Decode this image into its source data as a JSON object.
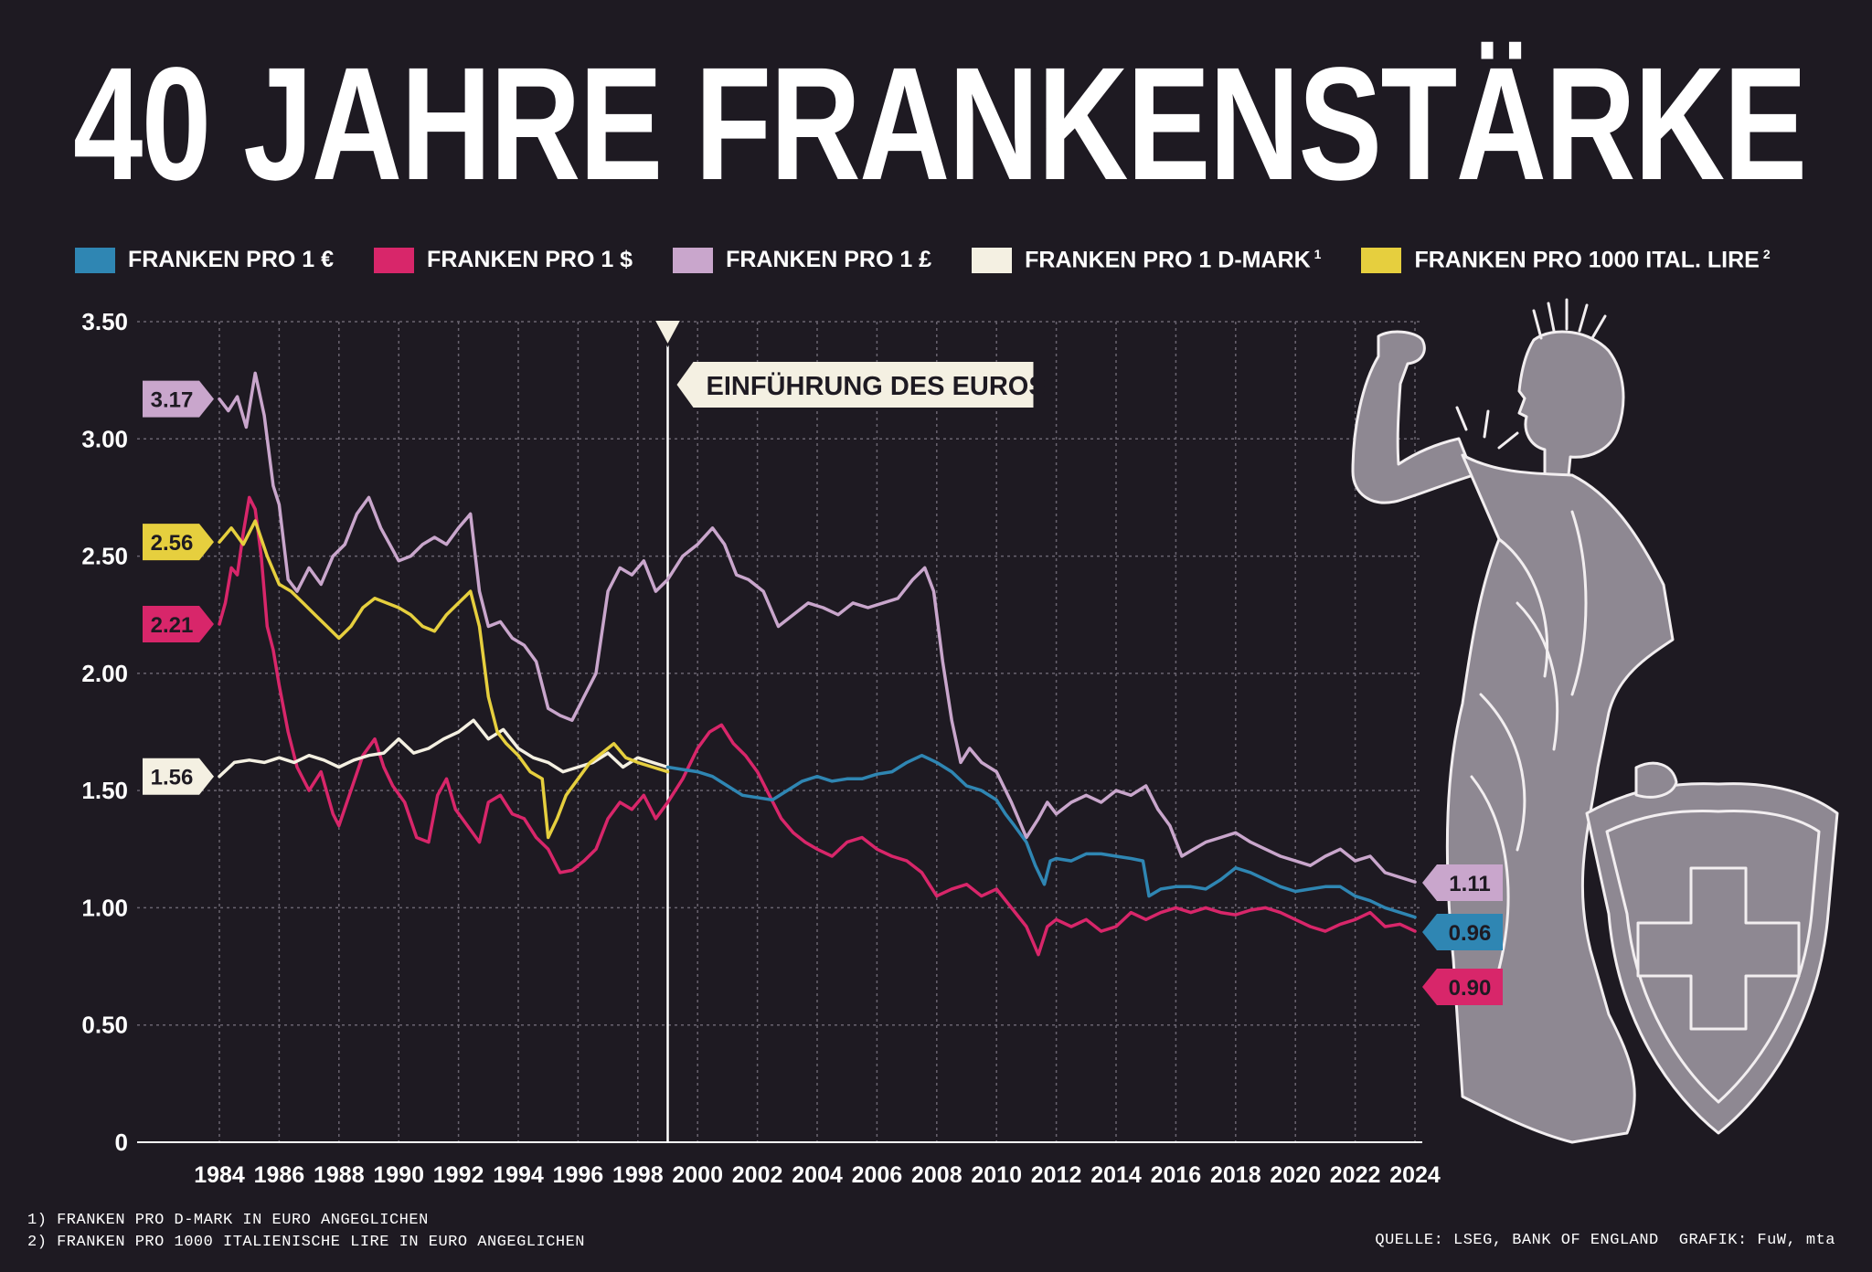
{
  "title": "40 JAHRE FRANKENSTÄRKE",
  "legend": [
    {
      "label": "FRANKEN PRO 1 €",
      "sup": "",
      "color": "#2f86b3"
    },
    {
      "label": "FRANKEN PRO 1 $",
      "sup": "",
      "color": "#d8266a"
    },
    {
      "label": "FRANKEN PRO 1 £",
      "sup": "",
      "color": "#c9a6cc"
    },
    {
      "label": "FRANKEN PRO 1 D-MARK",
      "sup": "1",
      "color": "#f4f0e2"
    },
    {
      "label": "FRANKEN PRO 1000 ITAL. LIRE",
      "sup": "2",
      "color": "#e6cf3e"
    }
  ],
  "annotation": "EINFÜHRUNG DES EUROS",
  "footnotes": [
    "1) FRANKEN PRO D-MARK IN EURO ANGEGLICHEN",
    "2) FRANKEN PRO 1000 ITALIENISCHE LIRE IN EURO ANGEGLICHEN"
  ],
  "source": "QUELLE: LSEG, BANK OF ENGLAND",
  "credit": "GRAFIK: FuW, mta",
  "illustration": "helvetia-figure-with-swiss-shield",
  "colors": {
    "background": "#1e1a22",
    "grid": "#6a6470",
    "badge_text_dark": "#1e1a22"
  },
  "chart_data": {
    "type": "line",
    "title": "40 JAHRE FRANKENSTÄRKE",
    "xlabel": "",
    "ylabel": "",
    "xlim": [
      1983.6,
      2024.2
    ],
    "ylim": [
      0,
      3.5
    ],
    "y_ticks": [
      3.5,
      3.0,
      2.5,
      2.0,
      1.5,
      1.0,
      0.5,
      0
    ],
    "y_tick_labels": [
      "3.50",
      "3.00",
      "2.50",
      "2.00",
      "1.50",
      "1.00",
      "0.50",
      "0"
    ],
    "x_ticks": [
      1984,
      1986,
      1988,
      1990,
      1992,
      1994,
      1996,
      1998,
      2000,
      2002,
      2004,
      2006,
      2008,
      2010,
      2012,
      2014,
      2016,
      2018,
      2020,
      2022,
      2024
    ],
    "x_tick_labels": [
      "1984",
      "1986",
      "1988",
      "1990",
      "1992",
      "1994",
      "1996",
      "1998",
      "2000",
      "2002",
      "2004",
      "2006",
      "2008",
      "2010",
      "2012",
      "2014",
      "2016",
      "2018",
      "2020",
      "2022",
      "2024"
    ],
    "euro_intro_year": 1999,
    "series": [
      {
        "name": "FRANKEN PRO 1 £",
        "color": "#c9a6cc",
        "x": [
          1984.0,
          1984.3,
          1984.6,
          1984.9,
          1985.2,
          1985.5,
          1985.8,
          1986.0,
          1986.3,
          1986.6,
          1987.0,
          1987.4,
          1987.8,
          1988.2,
          1988.6,
          1989.0,
          1989.4,
          1989.7,
          1990.0,
          1990.4,
          1990.8,
          1991.2,
          1991.6,
          1992.0,
          1992.4,
          1992.7,
          1993.0,
          1993.4,
          1993.8,
          1994.2,
          1994.6,
          1995.0,
          1995.4,
          1995.8,
          1996.2,
          1996.6,
          1997.0,
          1997.4,
          1997.8,
          1998.2,
          1998.6,
          1999.0,
          1999.5,
          2000.0,
          2000.5,
          2000.9,
          2001.3,
          2001.7,
          2002.2,
          2002.7,
          2003.2,
          2003.7,
          2004.2,
          2004.7,
          2005.2,
          2005.7,
          2006.2,
          2006.7,
          2007.2,
          2007.6,
          2007.9,
          2008.2,
          2008.5,
          2008.8,
          2009.1,
          2009.5,
          2010.0,
          2010.5,
          2011.0,
          2011.4,
          2011.7,
          2012.0,
          2012.5,
          2013.0,
          2013.5,
          2014.0,
          2014.5,
          2015.0,
          2015.4,
          2015.8,
          2016.2,
          2016.6,
          2017.0,
          2017.5,
          2018.0,
          2018.5,
          2019.0,
          2019.5,
          2020.0,
          2020.5,
          2021.0,
          2021.5,
          2022.0,
          2022.5,
          2023.0,
          2023.5,
          2024.0
        ],
        "y": [
          3.17,
          3.12,
          3.18,
          3.05,
          3.28,
          3.1,
          2.8,
          2.72,
          2.4,
          2.35,
          2.45,
          2.38,
          2.5,
          2.55,
          2.68,
          2.75,
          2.62,
          2.55,
          2.48,
          2.5,
          2.55,
          2.58,
          2.55,
          2.62,
          2.68,
          2.35,
          2.2,
          2.22,
          2.15,
          2.12,
          2.05,
          1.85,
          1.82,
          1.8,
          1.9,
          2.0,
          2.35,
          2.45,
          2.42,
          2.48,
          2.35,
          2.4,
          2.5,
          2.55,
          2.62,
          2.55,
          2.42,
          2.4,
          2.35,
          2.2,
          2.25,
          2.3,
          2.28,
          2.25,
          2.3,
          2.28,
          2.3,
          2.32,
          2.4,
          2.45,
          2.35,
          2.05,
          1.8,
          1.62,
          1.68,
          1.62,
          1.58,
          1.45,
          1.3,
          1.38,
          1.45,
          1.4,
          1.45,
          1.48,
          1.45,
          1.5,
          1.48,
          1.52,
          1.42,
          1.35,
          1.22,
          1.25,
          1.28,
          1.3,
          1.32,
          1.28,
          1.25,
          1.22,
          1.2,
          1.18,
          1.22,
          1.25,
          1.2,
          1.22,
          1.15,
          1.13,
          1.11
        ]
      },
      {
        "name": "FRANKEN PRO 1 $",
        "color": "#d8266a",
        "x": [
          1984.0,
          1984.2,
          1984.4,
          1984.6,
          1984.8,
          1985.0,
          1985.2,
          1985.4,
          1985.6,
          1985.8,
          1986.0,
          1986.3,
          1986.6,
          1987.0,
          1987.4,
          1987.8,
          1988.0,
          1988.4,
          1988.8,
          1989.2,
          1989.5,
          1989.8,
          1990.2,
          1990.6,
          1991.0,
          1991.3,
          1991.6,
          1991.9,
          1992.3,
          1992.7,
          1993.0,
          1993.4,
          1993.8,
          1994.2,
          1994.6,
          1995.0,
          1995.4,
          1995.8,
          1996.2,
          1996.6,
          1997.0,
          1997.4,
          1997.8,
          1998.2,
          1998.6,
          1999.0,
          1999.5,
          2000.0,
          2000.4,
          2000.8,
          2001.2,
          2001.6,
          2002.0,
          2002.4,
          2002.8,
          2003.2,
          2003.6,
          2004.0,
          2004.5,
          2005.0,
          2005.5,
          2006.0,
          2006.5,
          2007.0,
          2007.5,
          2008.0,
          2008.5,
          2009.0,
          2009.5,
          2010.0,
          2010.5,
          2011.0,
          2011.4,
          2011.7,
          2012.0,
          2012.5,
          2013.0,
          2013.5,
          2014.0,
          2014.5,
          2015.0,
          2015.5,
          2016.0,
          2016.5,
          2017.0,
          2017.5,
          2018.0,
          2018.5,
          2019.0,
          2019.5,
          2020.0,
          2020.5,
          2021.0,
          2021.5,
          2022.0,
          2022.5,
          2023.0,
          2023.5,
          2024.0
        ],
        "y": [
          2.21,
          2.3,
          2.45,
          2.42,
          2.6,
          2.75,
          2.7,
          2.5,
          2.2,
          2.1,
          1.95,
          1.75,
          1.6,
          1.5,
          1.58,
          1.4,
          1.35,
          1.5,
          1.65,
          1.72,
          1.6,
          1.52,
          1.45,
          1.3,
          1.28,
          1.48,
          1.55,
          1.42,
          1.35,
          1.28,
          1.45,
          1.48,
          1.4,
          1.38,
          1.3,
          1.25,
          1.15,
          1.16,
          1.2,
          1.25,
          1.38,
          1.45,
          1.42,
          1.48,
          1.38,
          1.45,
          1.55,
          1.68,
          1.75,
          1.78,
          1.7,
          1.65,
          1.58,
          1.48,
          1.38,
          1.32,
          1.28,
          1.25,
          1.22,
          1.28,
          1.3,
          1.25,
          1.22,
          1.2,
          1.15,
          1.05,
          1.08,
          1.1,
          1.05,
          1.08,
          1.0,
          0.92,
          0.8,
          0.92,
          0.95,
          0.92,
          0.95,
          0.9,
          0.92,
          0.98,
          0.95,
          0.98,
          1.0,
          0.98,
          1.0,
          0.98,
          0.97,
          0.99,
          1.0,
          0.98,
          0.95,
          0.92,
          0.9,
          0.93,
          0.95,
          0.98,
          0.92,
          0.93,
          0.9
        ]
      },
      {
        "name": "FRANKEN PRO 1 D-MARK",
        "color": "#f4f0e2",
        "x": [
          1984.0,
          1984.5,
          1985.0,
          1985.5,
          1986.0,
          1986.5,
          1987.0,
          1987.5,
          1988.0,
          1988.5,
          1989.0,
          1989.5,
          1990.0,
          1990.5,
          1991.0,
          1991.5,
          1992.0,
          1992.5,
          1993.0,
          1993.5,
          1994.0,
          1994.5,
          1995.0,
          1995.5,
          1996.0,
          1996.5,
          1997.0,
          1997.5,
          1998.0,
          1998.5,
          1999.0
        ],
        "y": [
          1.56,
          1.62,
          1.63,
          1.62,
          1.64,
          1.62,
          1.65,
          1.63,
          1.6,
          1.63,
          1.65,
          1.66,
          1.72,
          1.66,
          1.68,
          1.72,
          1.75,
          1.8,
          1.72,
          1.76,
          1.68,
          1.64,
          1.62,
          1.58,
          1.6,
          1.62,
          1.66,
          1.6,
          1.64,
          1.62,
          1.6
        ]
      },
      {
        "name": "FRANKEN PRO 1000 ITAL. LIRE",
        "color": "#e6cf3e",
        "x": [
          1984.0,
          1984.4,
          1984.8,
          1985.2,
          1985.6,
          1986.0,
          1986.4,
          1986.8,
          1987.2,
          1987.6,
          1988.0,
          1988.4,
          1988.8,
          1989.2,
          1989.6,
          1990.0,
          1990.4,
          1990.8,
          1991.2,
          1991.6,
          1992.0,
          1992.4,
          1992.7,
          1993.0,
          1993.3,
          1993.6,
          1994.0,
          1994.4,
          1994.8,
          1995.0,
          1995.3,
          1995.6,
          1996.0,
          1996.4,
          1996.8,
          1997.2,
          1997.6,
          1998.0,
          1998.5,
          1999.0
        ],
        "y": [
          2.56,
          2.62,
          2.55,
          2.65,
          2.5,
          2.38,
          2.35,
          2.3,
          2.25,
          2.2,
          2.15,
          2.2,
          2.28,
          2.32,
          2.3,
          2.28,
          2.25,
          2.2,
          2.18,
          2.25,
          2.3,
          2.35,
          2.2,
          1.9,
          1.75,
          1.7,
          1.65,
          1.58,
          1.55,
          1.3,
          1.38,
          1.48,
          1.55,
          1.62,
          1.66,
          1.7,
          1.64,
          1.62,
          1.6,
          1.58
        ]
      },
      {
        "name": "FRANKEN PRO 1 €",
        "color": "#2f86b3",
        "x": [
          1999.0,
          1999.5,
          2000.0,
          2000.5,
          2001.0,
          2001.5,
          2002.0,
          2002.5,
          2003.0,
          2003.5,
          2004.0,
          2004.5,
          2005.0,
          2005.5,
          2006.0,
          2006.5,
          2007.0,
          2007.5,
          2008.0,
          2008.5,
          2009.0,
          2009.5,
          2010.0,
          2010.3,
          2010.6,
          2011.0,
          2011.3,
          2011.6,
          2011.8,
          2012.0,
          2012.5,
          2013.0,
          2013.5,
          2014.0,
          2014.5,
          2014.9,
          2015.1,
          2015.5,
          2016.0,
          2016.5,
          2017.0,
          2017.5,
          2018.0,
          2018.5,
          2019.0,
          2019.5,
          2020.0,
          2020.5,
          2021.0,
          2021.5,
          2022.0,
          2022.5,
          2023.0,
          2023.5,
          2024.0
        ],
        "y": [
          1.6,
          1.59,
          1.58,
          1.56,
          1.52,
          1.48,
          1.47,
          1.46,
          1.5,
          1.54,
          1.56,
          1.54,
          1.55,
          1.55,
          1.57,
          1.58,
          1.62,
          1.65,
          1.62,
          1.58,
          1.52,
          1.5,
          1.46,
          1.4,
          1.35,
          1.28,
          1.18,
          1.1,
          1.2,
          1.21,
          1.2,
          1.23,
          1.23,
          1.22,
          1.21,
          1.2,
          1.05,
          1.08,
          1.09,
          1.09,
          1.08,
          1.12,
          1.17,
          1.15,
          1.12,
          1.09,
          1.07,
          1.08,
          1.09,
          1.09,
          1.05,
          1.03,
          1.0,
          0.98,
          0.96
        ]
      }
    ],
    "end_labels": [
      {
        "text": "1.11",
        "series": "FRANKEN PRO 1 £",
        "value": 1.11
      },
      {
        "text": "0.96",
        "series": "FRANKEN PRO 1 €",
        "value": 0.96
      },
      {
        "text": "0.90",
        "series": "FRANKEN PRO 1 $",
        "value": 0.9
      }
    ],
    "start_labels": [
      {
        "text": "3.17",
        "series": "FRANKEN PRO 1 £",
        "value": 3.17
      },
      {
        "text": "2.56",
        "series": "FRANKEN PRO 1000 ITAL. LIRE",
        "value": 2.56
      },
      {
        "text": "2.21",
        "series": "FRANKEN PRO 1 $",
        "value": 2.21
      },
      {
        "text": "1.56",
        "series": "FRANKEN PRO 1 D-MARK",
        "value": 1.56
      }
    ]
  }
}
